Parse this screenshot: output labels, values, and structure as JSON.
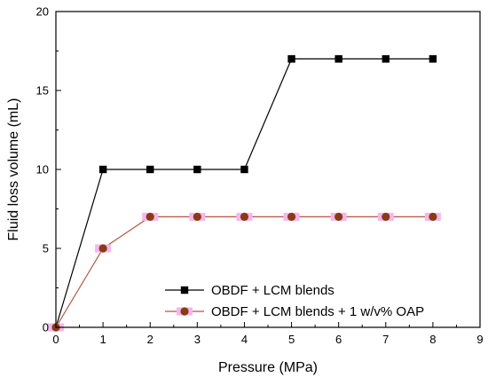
{
  "chart_data": {
    "type": "line",
    "xlabel": "Pressure (MPa)",
    "ylabel": "Fluid loss volume (mL)",
    "xlim": [
      0,
      9
    ],
    "ylim": [
      0,
      20
    ],
    "x_ticks": [
      0,
      1,
      2,
      3,
      4,
      5,
      6,
      7,
      8,
      9
    ],
    "y_ticks": [
      0,
      5,
      10,
      15,
      20
    ],
    "grid": false,
    "legend_position": "bottom-right",
    "series": [
      {
        "name": "OBDF + LCM blends",
        "x": [
          0,
          1,
          2,
          3,
          4,
          5,
          6,
          7,
          8
        ],
        "y": [
          0,
          10,
          10,
          10,
          10,
          17,
          17,
          17,
          17
        ],
        "marker": "square",
        "line_color": "#000000",
        "marker_color": "#000000"
      },
      {
        "name": "OBDF + LCM blends + 1 w/v% OAP",
        "x": [
          0,
          1,
          2,
          3,
          4,
          5,
          6,
          7,
          8
        ],
        "y": [
          0,
          5,
          7,
          7,
          7,
          7,
          7,
          7,
          7
        ],
        "marker": "circle",
        "line_color": "#b5533a",
        "marker_color": "#8b3a12",
        "marker_halo_color": "#f3b6f0"
      }
    ]
  }
}
